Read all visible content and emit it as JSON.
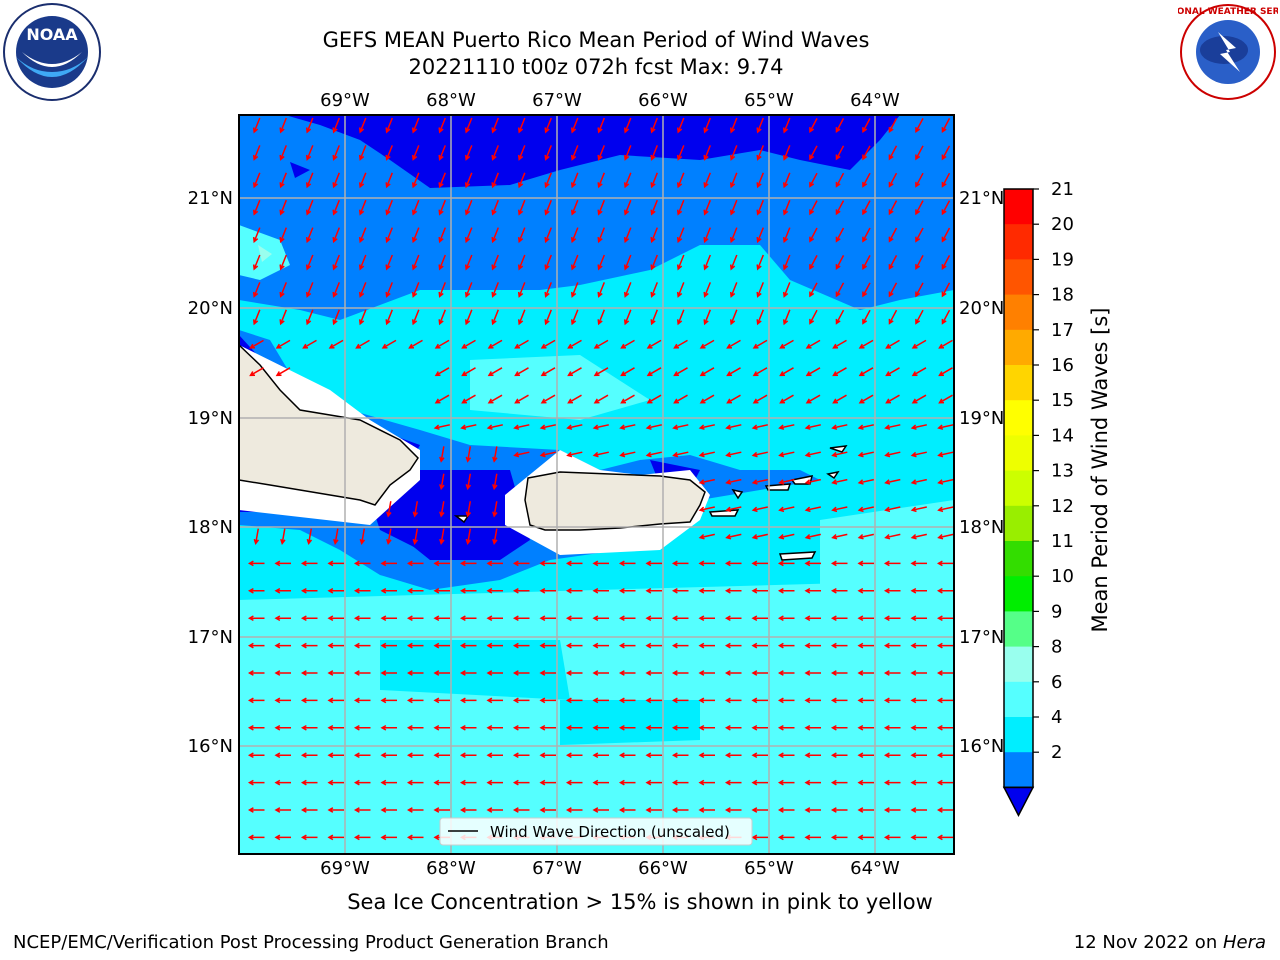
{
  "title": {
    "line1": "GEFS MEAN Puerto Rico Mean Period of Wind Waves",
    "line2": "20221110 t00z 072h fcst   Max: 9.74"
  },
  "map": {
    "lon_labels": [
      "69°W",
      "68°W",
      "67°W",
      "66°W",
      "65°W",
      "64°W"
    ],
    "lat_labels": [
      "21°N",
      "20°N",
      "19°N",
      "18°N",
      "17°N",
      "16°N"
    ],
    "legend_label": "Wind Wave Direction (unscaled)",
    "colors": {
      "ocean_low": "#0000ee",
      "ocean_2_4": "#0080ff",
      "ocean_4_6": "#00eeff",
      "ocean_6_8": "#55ffff",
      "ocean_8_9": "#99ffee",
      "land": "#eeeade",
      "arrow": "#ff0000",
      "grid": "#b0b0b0"
    }
  },
  "colorbar": {
    "label": "Mean Period of Wind Waves [s]",
    "ticks": [
      "21",
      "20",
      "19",
      "18",
      "17",
      "16",
      "15",
      "14",
      "13",
      "12",
      "11",
      "10",
      "9",
      "8",
      "6",
      "4",
      "2"
    ],
    "colors": [
      "#ff0000",
      "#ff2a00",
      "#ff5500",
      "#ff8000",
      "#ffaa00",
      "#ffd500",
      "#ffff00",
      "#eeff00",
      "#ccff00",
      "#99ee00",
      "#33dd00",
      "#00ee00",
      "#55ff88",
      "#99ffee",
      "#55ffff",
      "#00eeff",
      "#0080ff",
      "#0000ee"
    ]
  },
  "notes": {
    "sea_ice": "Sea Ice Concentration > 15% is shown in pink to yellow",
    "branch": "NCEP/EMC/Verification Post Processing Product Generation Branch",
    "date_prefix": "12 Nov 2022 on ",
    "host": "Hera"
  },
  "logos": {
    "noaa_text": "NOAA",
    "nws_text": "NATIONAL WEATHER SERVICE"
  }
}
